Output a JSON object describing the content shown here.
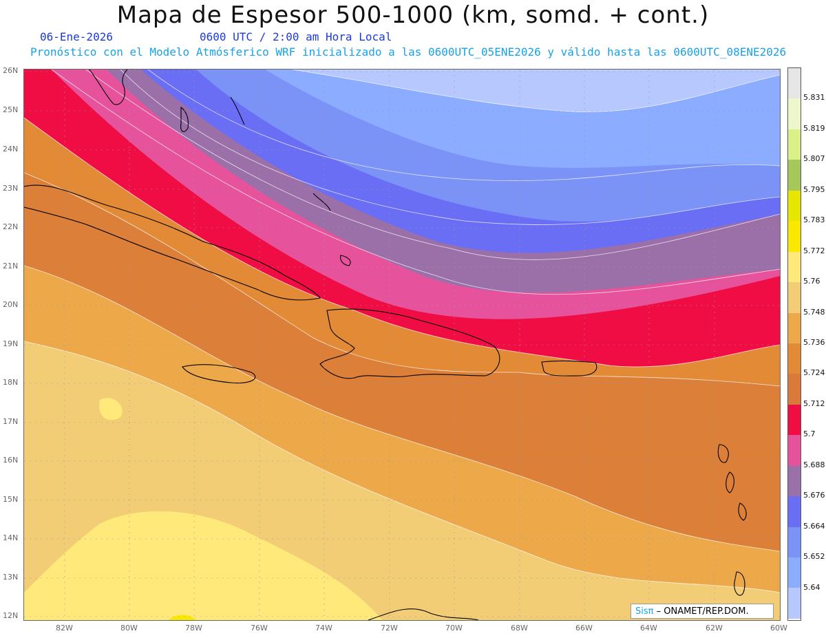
{
  "header": {
    "title": "Mapa de Espesor 500-1000 (km, somd. + cont.)",
    "date": "06-Ene-2026",
    "time": "0600 UTC / 2:00 am Hora Local",
    "description": "Pronóstico con el Modelo Atmósferico WRF inicializado a las 0600UTC_05ENE2026 y válido hasta las  0600UTC_08ENE2026"
  },
  "map": {
    "lat_labels": [
      "26N",
      "25N",
      "24N",
      "23N",
      "22N",
      "21N",
      "20N",
      "19N",
      "18N",
      "17N",
      "16N",
      "15N",
      "14N",
      "13N",
      "12N"
    ],
    "lon_labels": [
      "82W",
      "80W",
      "78W",
      "76W",
      "74W",
      "72W",
      "70W",
      "68W",
      "66W",
      "64W",
      "62W",
      "60W"
    ],
    "grid": true
  },
  "legend": {
    "values": [
      "5.831",
      "5.819",
      "5.807",
      "5.795",
      "5.783",
      "5.772",
      "5.76",
      "5.748",
      "5.736",
      "5.724",
      "5.712",
      "5.7",
      "5.688",
      "5.676",
      "5.664",
      "5.652",
      "5.64"
    ],
    "colors": [
      "#e6e6e6",
      "#eef6cc",
      "#dcf08a",
      "#a6c85a",
      "#e6e600",
      "#fae800",
      "#ffe97a",
      "#f2cd75",
      "#eda949",
      "#e38a37",
      "#d97a3a",
      "#ef0d44",
      "#e6539c",
      "#9b6fa8",
      "#6a6ef5",
      "#7b92f6",
      "#8cacff",
      "#b7c8ff"
    ]
  },
  "credit": {
    "sis": "Sisπ",
    "text": "– ONAMET/REP.DOM."
  }
}
